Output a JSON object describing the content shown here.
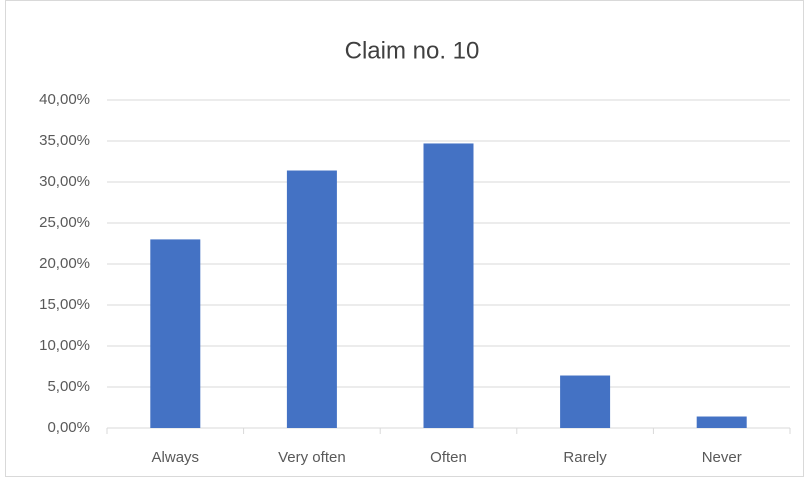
{
  "chart_data": {
    "type": "bar",
    "title": "Claim no. 10",
    "categories": [
      "Always",
      "Very often",
      "Often",
      "Rarely",
      "Never"
    ],
    "values": [
      23.0,
      31.4,
      34.7,
      6.4,
      1.4
    ],
    "color": "#4472c4",
    "ylim": [
      0,
      40
    ],
    "yticks": [
      {
        "value": 0,
        "label": "0,00%"
      },
      {
        "value": 5,
        "label": "5,00%"
      },
      {
        "value": 10,
        "label": "10,00%"
      },
      {
        "value": 15,
        "label": "15,00%"
      },
      {
        "value": 20,
        "label": "20,00%"
      },
      {
        "value": 25,
        "label": "25,00%"
      },
      {
        "value": 30,
        "label": "30,00%"
      },
      {
        "value": 35,
        "label": "35,00%"
      },
      {
        "value": 40,
        "label": "40,00%"
      }
    ],
    "grid": true
  }
}
